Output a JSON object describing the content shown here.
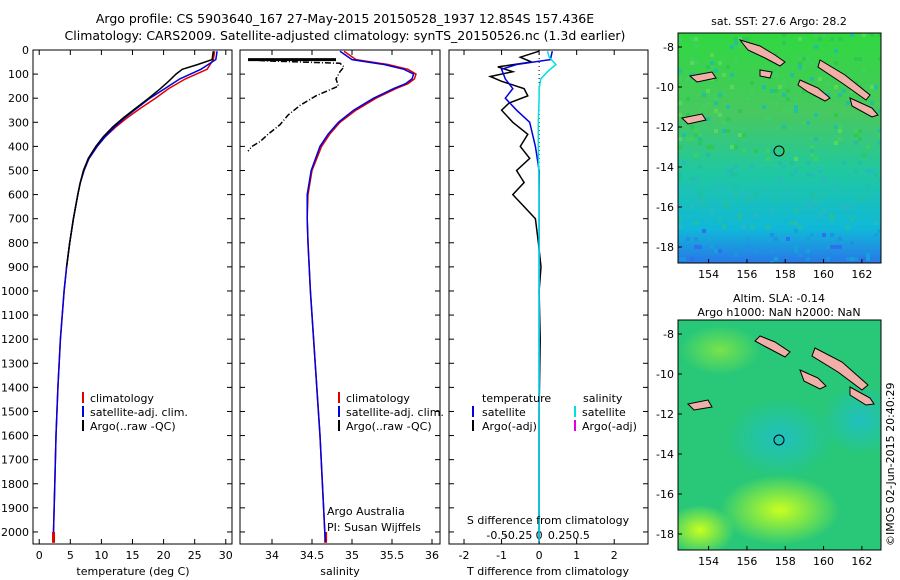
{
  "title": {
    "line1": "Argo profile: CS 5903640_167 27-May-2015 20150528_1937 12.854S 157.436E",
    "line2": "Climatology: CARS2009. Satellite-adjusted climatology: synTS_20150526.nc (1.3d earlier)"
  },
  "colors": {
    "clim": "#e00000",
    "sat": "#0000e0",
    "argo": "#000000",
    "sal_sat": "#00e0e0",
    "sal_argo": "#e000e0"
  },
  "chart_data": [
    {
      "type": "line",
      "id": "temperature",
      "xlabel": "temperature (deg C)",
      "ylabel": "",
      "xlim": [
        -1,
        31
      ],
      "ylim": [
        0,
        2050
      ],
      "xticks": [
        0,
        5,
        10,
        15,
        20,
        25,
        30
      ],
      "yticks": [
        0,
        100,
        200,
        300,
        400,
        500,
        600,
        700,
        800,
        900,
        1000,
        1100,
        1200,
        1300,
        1400,
        1500,
        1600,
        1700,
        1800,
        1900,
        2000
      ],
      "legend": [
        "climatology",
        "satellite-adj. clim.",
        "Argo(..raw -QC)"
      ],
      "series": [
        {
          "name": "climatology",
          "depth": [
            5,
            40,
            80,
            120,
            160,
            200,
            240,
            280,
            320,
            360,
            400,
            450,
            500,
            550,
            600,
            700,
            800,
            900,
            1000,
            1200,
            1400,
            1600,
            1800,
            2000,
            2040
          ],
          "values": [
            28.2,
            28.0,
            27.0,
            23.5,
            20.8,
            18.7,
            16.4,
            14.2,
            12.3,
            10.6,
            9.3,
            8.0,
            7.2,
            6.6,
            6.2,
            5.5,
            4.9,
            4.4,
            4.0,
            3.4,
            3.0,
            2.7,
            2.5,
            2.3,
            2.3
          ]
        },
        {
          "name": "satellite-adj. clim.",
          "depth": [
            5,
            40,
            80,
            120,
            160,
            200,
            240,
            280,
            320,
            360,
            400,
            450,
            500,
            550,
            600,
            700,
            800,
            900,
            1000,
            1200,
            1400,
            1600,
            1800,
            2000,
            2040
          ],
          "values": [
            28.6,
            28.4,
            26.0,
            22.6,
            20.2,
            17.8,
            15.8,
            13.8,
            12.1,
            10.6,
            9.3,
            8.0,
            7.2,
            6.6,
            6.2,
            5.5,
            4.9,
            4.4,
            4.0,
            3.4,
            3.0,
            2.7,
            2.5,
            2.3,
            2.3
          ]
        },
        {
          "name": "Argo(..raw -QC)",
          "depth": [
            5,
            40,
            60,
            80,
            100,
            130,
            160,
            200,
            240,
            280,
            320,
            360,
            400,
            450,
            500,
            550,
            600,
            700,
            800,
            900
          ],
          "values": [
            28.0,
            27.8,
            25.5,
            23.0,
            22.0,
            20.8,
            19.5,
            17.6,
            15.6,
            13.6,
            11.8,
            10.3,
            9.1,
            7.9,
            7.1,
            6.6,
            6.2,
            5.5,
            4.9,
            4.4
          ]
        }
      ]
    },
    {
      "type": "line",
      "id": "salinity",
      "xlabel": "salinity",
      "xlim": [
        33.6,
        36.1
      ],
      "ylim": [
        0,
        2050
      ],
      "xticks": [
        34,
        34.5,
        35,
        35.5,
        36
      ],
      "xticklabels": [
        "34",
        "34.5",
        "35",
        "35.5",
        "36"
      ],
      "legend": [
        "climatology",
        "satellite-adj. clim.",
        "Argo(..raw -QC)"
      ],
      "annotation": [
        "Argo Australia",
        "PI: Susan Wijffels"
      ],
      "series": [
        {
          "name": "climatology",
          "depth": [
            5,
            40,
            60,
            80,
            100,
            120,
            140,
            160,
            200,
            250,
            300,
            350,
            400,
            500,
            600,
            700,
            800,
            1000,
            1200,
            1400,
            1600,
            1800,
            2000,
            2040
          ],
          "values": [
            34.9,
            35.05,
            35.45,
            35.7,
            35.8,
            35.78,
            35.7,
            35.55,
            35.3,
            35.05,
            34.85,
            34.72,
            34.62,
            34.5,
            34.45,
            34.44,
            34.45,
            34.48,
            34.52,
            34.56,
            34.6,
            34.63,
            34.66,
            34.67
          ]
        },
        {
          "name": "satellite-adj. clim.",
          "depth": [
            5,
            40,
            60,
            80,
            100,
            120,
            140,
            160,
            200,
            250,
            300,
            350,
            400,
            500,
            600,
            700,
            800,
            1000,
            1200,
            1400,
            1600,
            1800,
            2000,
            2040
          ],
          "values": [
            34.85,
            35.0,
            35.4,
            35.65,
            35.77,
            35.75,
            35.67,
            35.52,
            35.27,
            35.02,
            34.83,
            34.7,
            34.6,
            34.49,
            34.44,
            34.44,
            34.45,
            34.48,
            34.52,
            34.56,
            34.6,
            34.63,
            34.66,
            34.67
          ]
        },
        {
          "name": "Argo(..raw -QC)",
          "depth": [
            40,
            45,
            55,
            70,
            90,
            120,
            150,
            190,
            230,
            270,
            310,
            350,
            380,
            400,
            420
          ],
          "values": [
            33.7,
            33.9,
            34.85,
            34.9,
            34.85,
            34.8,
            34.83,
            34.55,
            34.35,
            34.2,
            34.1,
            33.95,
            33.85,
            33.75,
            33.7
          ]
        }
      ]
    },
    {
      "type": "line",
      "id": "difference",
      "xlabel": "T difference from climatology",
      "xlabel_top": "S difference from climatology",
      "xlim": [
        -2.4,
        2.9
      ],
      "ylim": [
        0,
        2050
      ],
      "xticks": [
        -2,
        -1,
        0,
        1,
        2
      ],
      "xticks_top": [
        -0.5,
        -0.25,
        0,
        0.25,
        0.5
      ],
      "xticklabels_top": [
        "-0.5",
        "-0.25",
        "0",
        "0.25",
        "0.5"
      ],
      "legend_temperature": [
        "temperature",
        "satellite",
        "Argo(-adj)"
      ],
      "legend_salinity": [
        "salinity",
        "satellite",
        "Argo(-adj)"
      ],
      "series": [
        {
          "name": "T satellite",
          "depth": [
            5,
            40,
            60,
            80,
            120,
            160,
            200,
            250,
            300,
            400,
            500,
            600,
            800,
            1000,
            2040
          ],
          "values": [
            0.35,
            0.3,
            -0.6,
            -1.0,
            -0.9,
            -0.7,
            -0.9,
            -0.6,
            -0.25,
            -0.1,
            0.0,
            0.0,
            0.0,
            0.0,
            0.0
          ]
        },
        {
          "name": "T Argo(-adj)",
          "depth": [
            5,
            30,
            50,
            70,
            90,
            110,
            130,
            160,
            190,
            220,
            250,
            300,
            350,
            400,
            450,
            500,
            550,
            600,
            650,
            700,
            800,
            900,
            1000,
            1200,
            1500,
            2040
          ],
          "values": [
            0.0,
            -0.5,
            -0.2,
            -1.1,
            -0.7,
            -1.3,
            -1.0,
            -0.4,
            -0.3,
            -0.8,
            -1.0,
            -0.7,
            -0.3,
            -0.5,
            -0.25,
            -0.6,
            -0.4,
            -0.7,
            -0.4,
            -0.1,
            -0.02,
            0.05,
            0.0,
            0.03,
            0.0,
            0.0
          ]
        },
        {
          "name": "S satellite",
          "depth": [
            5,
            30,
            60,
            90,
            120,
            160,
            200,
            300,
            400,
            600,
            1000,
            2040
          ],
          "values": [
            0.1,
            0.12,
            0.2,
            0.1,
            0.02,
            0.0,
            0.0,
            -0.01,
            -0.01,
            0.0,
            0.0,
            0.0
          ]
        }
      ]
    },
    {
      "type": "heatmap",
      "id": "sst-map",
      "title": "sat. SST: 27.6  Argo: 28.2",
      "xticks": [
        154,
        156,
        158,
        160,
        162
      ],
      "yticks": [
        -8,
        -10,
        -12,
        -14,
        -16,
        -18
      ],
      "xlim": [
        152.4,
        163.0
      ],
      "ylim": [
        -18.8,
        -7.3
      ],
      "float_position": [
        157.436,
        -12.854
      ]
    },
    {
      "type": "heatmap",
      "id": "sla-map",
      "title": "Altim. SLA: -0.14",
      "subtitle": "Argo h1000: NaN h2000: NaN",
      "xticks": [
        154,
        156,
        158,
        160,
        162
      ],
      "yticks": [
        -8,
        -10,
        -12,
        -14,
        -16,
        -18
      ],
      "xlim": [
        152.4,
        163.0
      ],
      "ylim": [
        -18.8,
        -7.3
      ],
      "float_position": [
        157.436,
        -12.854
      ]
    }
  ],
  "credit": "©IMOS 02-Jun-2015 20:40:29"
}
